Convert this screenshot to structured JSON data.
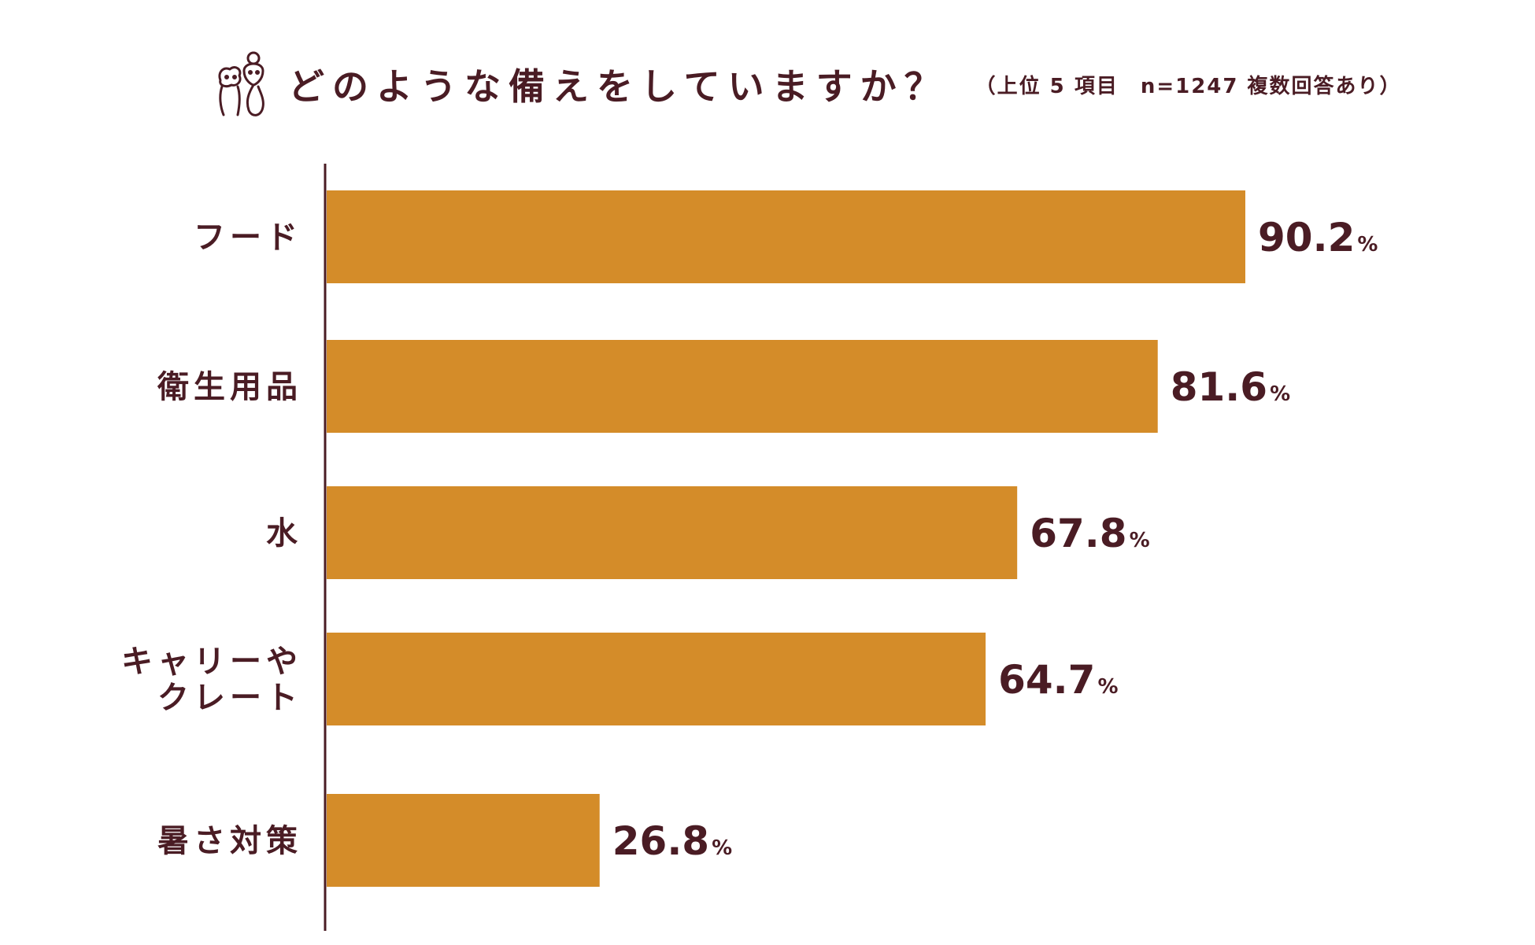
{
  "header": {
    "title": "どのような備えをしていますか？",
    "subtitle": "（上位 5 項目　n=1247 複数回答あり）",
    "logo_icon": "dog-and-owner-icon"
  },
  "chart_data": {
    "type": "bar",
    "orientation": "horizontal",
    "title": "どのような備えをしていますか？",
    "subtitle": "（上位 5 項目　n=1247 複数回答あり）",
    "categories": [
      [
        "フード"
      ],
      [
        "衛生用品"
      ],
      [
        "水"
      ],
      [
        "キャリーや",
        "クレート"
      ],
      [
        "暑さ対策"
      ]
    ],
    "values": [
      90.2,
      81.6,
      67.8,
      64.7,
      26.8
    ],
    "value_labels": [
      "90.2",
      "81.6",
      "67.8",
      "64.7",
      "26.8"
    ],
    "unit": "%",
    "xlim": [
      0,
      100
    ],
    "grid": false,
    "bar_color": "#d48c29",
    "text_color": "#4a1c24"
  }
}
